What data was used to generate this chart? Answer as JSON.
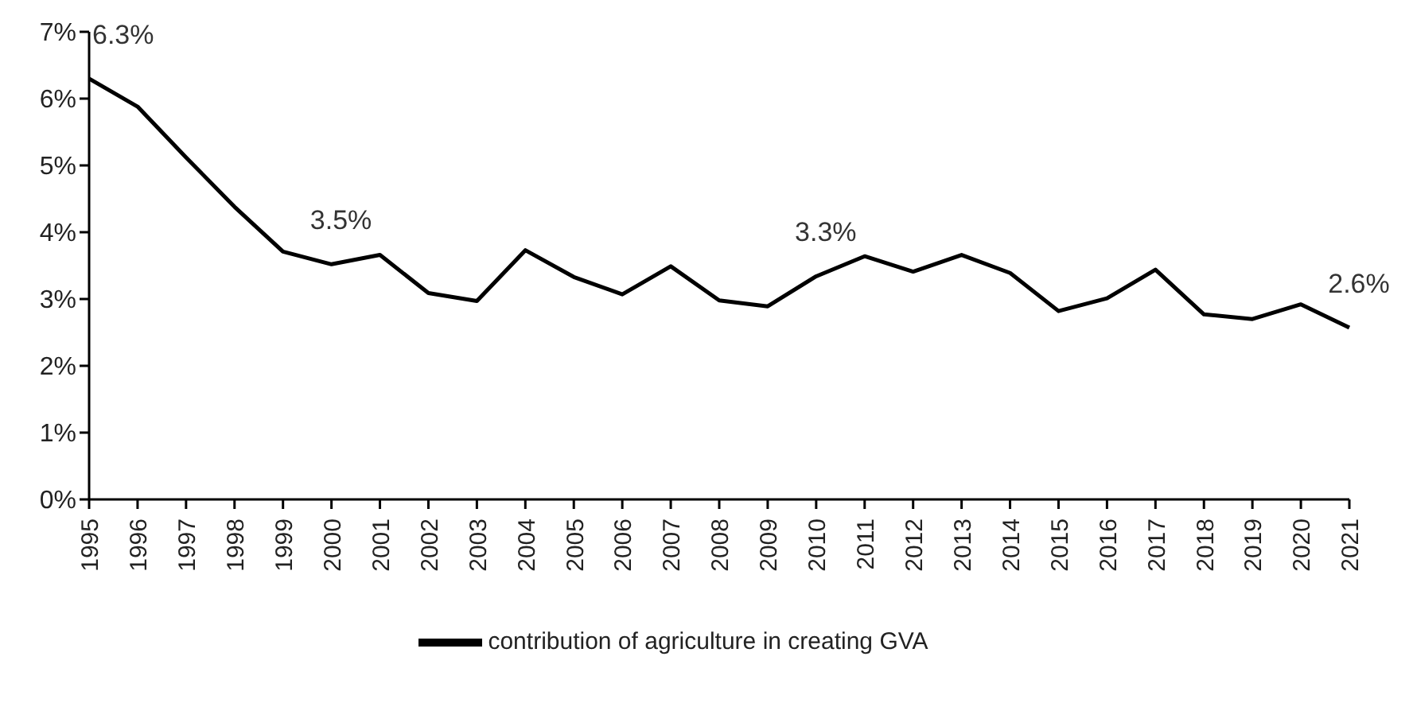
{
  "chart_data": {
    "type": "line",
    "categories": [
      "1995",
      "1996",
      "1997",
      "1998",
      "1999",
      "2000",
      "2001",
      "2002",
      "2003",
      "2004",
      "2005",
      "2006",
      "2007",
      "2008",
      "2009",
      "2010",
      "2011",
      "2012",
      "2013",
      "2014",
      "2015",
      "2016",
      "2017",
      "2018",
      "2019",
      "2020",
      "2021"
    ],
    "series": [
      {
        "name": "contribution of agriculture in creating GVA",
        "color": "#000000",
        "values": [
          6.3,
          5.88,
          5.12,
          4.38,
          3.71,
          3.52,
          3.66,
          3.09,
          2.97,
          3.73,
          3.33,
          3.07,
          3.49,
          2.98,
          2.89,
          3.34,
          3.64,
          3.41,
          3.66,
          3.39,
          2.82,
          3.01,
          3.44,
          2.77,
          2.7,
          2.92,
          2.57
        ]
      }
    ],
    "ylim": [
      0,
      7
    ],
    "yticks": [
      {
        "value": 0,
        "label": "0%"
      },
      {
        "value": 1,
        "label": "1%"
      },
      {
        "value": 2,
        "label": "2%"
      },
      {
        "value": 3,
        "label": "3%"
      },
      {
        "value": 4,
        "label": "4%"
      },
      {
        "value": 5,
        "label": "5%"
      },
      {
        "value": 6,
        "label": "6%"
      },
      {
        "value": 7,
        "label": "7%"
      }
    ],
    "annotations": [
      {
        "text": "6.3%",
        "x": "1995",
        "y": 6.3
      },
      {
        "text": "3.5%",
        "x": "2000",
        "y": 3.52
      },
      {
        "text": "3.3%",
        "x": "2010",
        "y": 3.34
      },
      {
        "text": "2.6%",
        "x": "2021",
        "y": 2.57
      }
    ],
    "grid": false,
    "legend": "bottom",
    "marker": "none",
    "line_style": "solid"
  }
}
